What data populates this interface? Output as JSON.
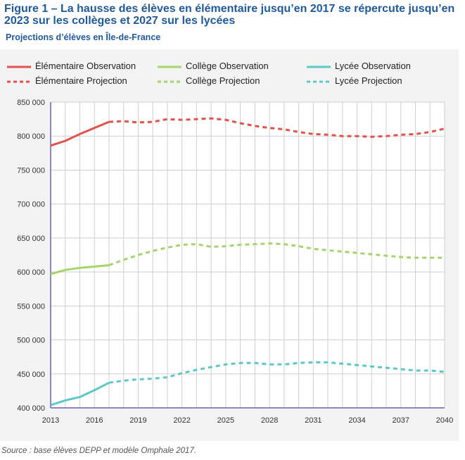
{
  "title": "Figure 1 – La hausse des élèves en élémentaire jusqu’en 2017 se répercute jusqu’en 2023 sur les collèges et 2027 sur les lycées",
  "subtitle": "Projections d’élèves en Île-de-France",
  "source": "Source : base élèves DEPP et modèle Omphale 2017.",
  "colors": {
    "elementaire": "#e0524e",
    "college": "#a6d36b",
    "lycee": "#5ec8c8",
    "axis": "#6a5fb5",
    "grid": "#cfcfcf"
  },
  "chart_data": {
    "type": "line",
    "title": "",
    "xlabel": "",
    "ylabel": "",
    "xlim": [
      2013,
      2040
    ],
    "ylim": [
      400000,
      850000
    ],
    "x_ticks": [
      2013,
      2016,
      2019,
      2022,
      2025,
      2028,
      2031,
      2034,
      2037,
      2040
    ],
    "x_tick_labels": [
      "2013",
      "2016",
      "2019",
      "2022",
      "2025",
      "2028",
      "2031",
      "2034",
      "2037",
      "2040"
    ],
    "y_ticks": [
      400000,
      450000,
      500000,
      550000,
      600000,
      650000,
      700000,
      750000,
      800000,
      850000
    ],
    "y_tick_labels": [
      "400 000",
      "450 000",
      "500 000",
      "550 000",
      "600 000",
      "650 000",
      "700 000",
      "750 000",
      "800 000",
      "850 000"
    ],
    "grid": true,
    "legend_position": "top",
    "series": [
      {
        "name": "Élémentaire Observation",
        "key": "elementaire",
        "style": "solid",
        "x": [
          2013,
          2014,
          2015,
          2016,
          2017
        ],
        "y": [
          786000,
          793000,
          803000,
          812000,
          821000
        ]
      },
      {
        "name": "Collège Observation",
        "key": "college",
        "style": "solid",
        "x": [
          2013,
          2014,
          2015,
          2016,
          2017
        ],
        "y": [
          597000,
          603000,
          606000,
          608000,
          610000
        ]
      },
      {
        "name": "Lycée Observation",
        "key": "lycee",
        "style": "solid",
        "x": [
          2013,
          2014,
          2015,
          2016,
          2017
        ],
        "y": [
          404000,
          411000,
          416000,
          426000,
          437000
        ]
      },
      {
        "name": "Élémentaire Projection",
        "key": "elementaire",
        "style": "dashed",
        "x": [
          2017,
          2018,
          2019,
          2020,
          2021,
          2022,
          2023,
          2024,
          2025,
          2026,
          2027,
          2028,
          2029,
          2030,
          2031,
          2032,
          2033,
          2034,
          2035,
          2036,
          2037,
          2038,
          2039,
          2040
        ],
        "y": [
          821000,
          822000,
          820000,
          821000,
          825000,
          824000,
          825000,
          826000,
          824000,
          819000,
          815000,
          812000,
          810000,
          806000,
          803000,
          802000,
          800000,
          800000,
          799000,
          800000,
          802000,
          803000,
          806000,
          811000
        ]
      },
      {
        "name": "Collège Projection",
        "key": "college",
        "style": "dashed",
        "x": [
          2017,
          2018,
          2019,
          2020,
          2021,
          2022,
          2023,
          2024,
          2025,
          2026,
          2027,
          2028,
          2029,
          2030,
          2031,
          2032,
          2033,
          2034,
          2035,
          2036,
          2037,
          2038,
          2039,
          2040
        ],
        "y": [
          610000,
          618000,
          625000,
          631000,
          636000,
          640000,
          641000,
          637000,
          638000,
          640000,
          641000,
          642000,
          641000,
          638000,
          634000,
          632000,
          630000,
          628000,
          626000,
          624000,
          622000,
          621000,
          621000,
          621000
        ]
      },
      {
        "name": "Lycée Projection",
        "key": "lycee",
        "style": "dashed",
        "x": [
          2017,
          2018,
          2019,
          2020,
          2021,
          2022,
          2023,
          2024,
          2025,
          2026,
          2027,
          2028,
          2029,
          2030,
          2031,
          2032,
          2033,
          2034,
          2035,
          2036,
          2037,
          2038,
          2039,
          2040
        ],
        "y": [
          437000,
          440000,
          442000,
          443000,
          445000,
          451000,
          456000,
          460000,
          464000,
          466000,
          466000,
          464000,
          464000,
          466000,
          467000,
          467000,
          465000,
          463000,
          461000,
          459000,
          457000,
          455000,
          455000,
          453000
        ]
      }
    ]
  }
}
